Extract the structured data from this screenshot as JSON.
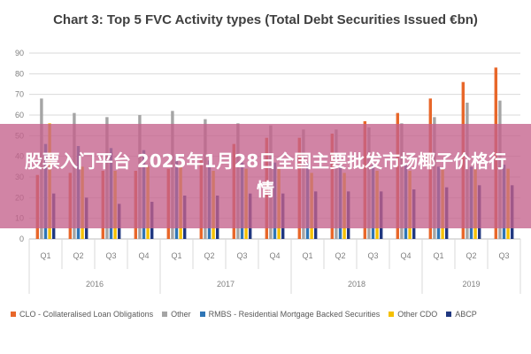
{
  "overlay": {
    "text": "股票入门平台 2025年1月28日全国主要批发市场椰子价格行情",
    "color": "#c4628c"
  },
  "chart_data": {
    "type": "bar",
    "title": "Chart 3: Top 5 FVC Activity types (Total Debt Securities Issued €bn)",
    "xlabel": "",
    "ylabel": "",
    "ylim": [
      0,
      90
    ],
    "yticks": [
      0,
      10,
      20,
      30,
      40,
      50,
      60,
      70,
      80,
      90
    ],
    "grid": true,
    "legend_position": "bottom",
    "categories": [
      "Q1",
      "Q2",
      "Q3",
      "Q4",
      "Q1",
      "Q2",
      "Q3",
      "Q4",
      "Q1",
      "Q2",
      "Q3",
      "Q4",
      "Q1",
      "Q2",
      "Q3"
    ],
    "years": [
      {
        "label": "2016",
        "start": 0,
        "count": 4
      },
      {
        "label": "2017",
        "start": 4,
        "count": 4
      },
      {
        "label": "2018",
        "start": 8,
        "count": 4
      },
      {
        "label": "2019",
        "start": 12,
        "count": 3
      }
    ],
    "series": [
      {
        "name": "CLO - Collateralised Loan Obligations",
        "color": "#e8672a",
        "values": [
          31,
          32,
          33,
          33,
          34,
          39,
          46,
          49,
          49,
          51,
          57,
          61,
          68,
          76,
          83
        ]
      },
      {
        "name": "Other",
        "color": "#a5a5a5",
        "values": [
          68,
          61,
          59,
          60,
          62,
          58,
          56,
          55,
          53,
          53,
          54,
          56,
          59,
          66,
          67
        ]
      },
      {
        "name": "RMBS - Residential Mortgage Backed Securities",
        "color": "#2e75b6",
        "values": [
          46,
          45,
          44,
          43,
          40,
          38,
          37,
          37,
          37,
          36,
          36,
          36,
          35,
          35,
          36
        ]
      },
      {
        "name": "Other CDO",
        "color": "#f5c000",
        "values": [
          56,
          35,
          33,
          35,
          35,
          33,
          34,
          34,
          32,
          32,
          33,
          33,
          34,
          34,
          34
        ]
      },
      {
        "name": "ABCP",
        "color": "#203880",
        "values": [
          22,
          20,
          17,
          18,
          21,
          21,
          22,
          22,
          23,
          23,
          23,
          24,
          25,
          26,
          26
        ]
      }
    ]
  }
}
